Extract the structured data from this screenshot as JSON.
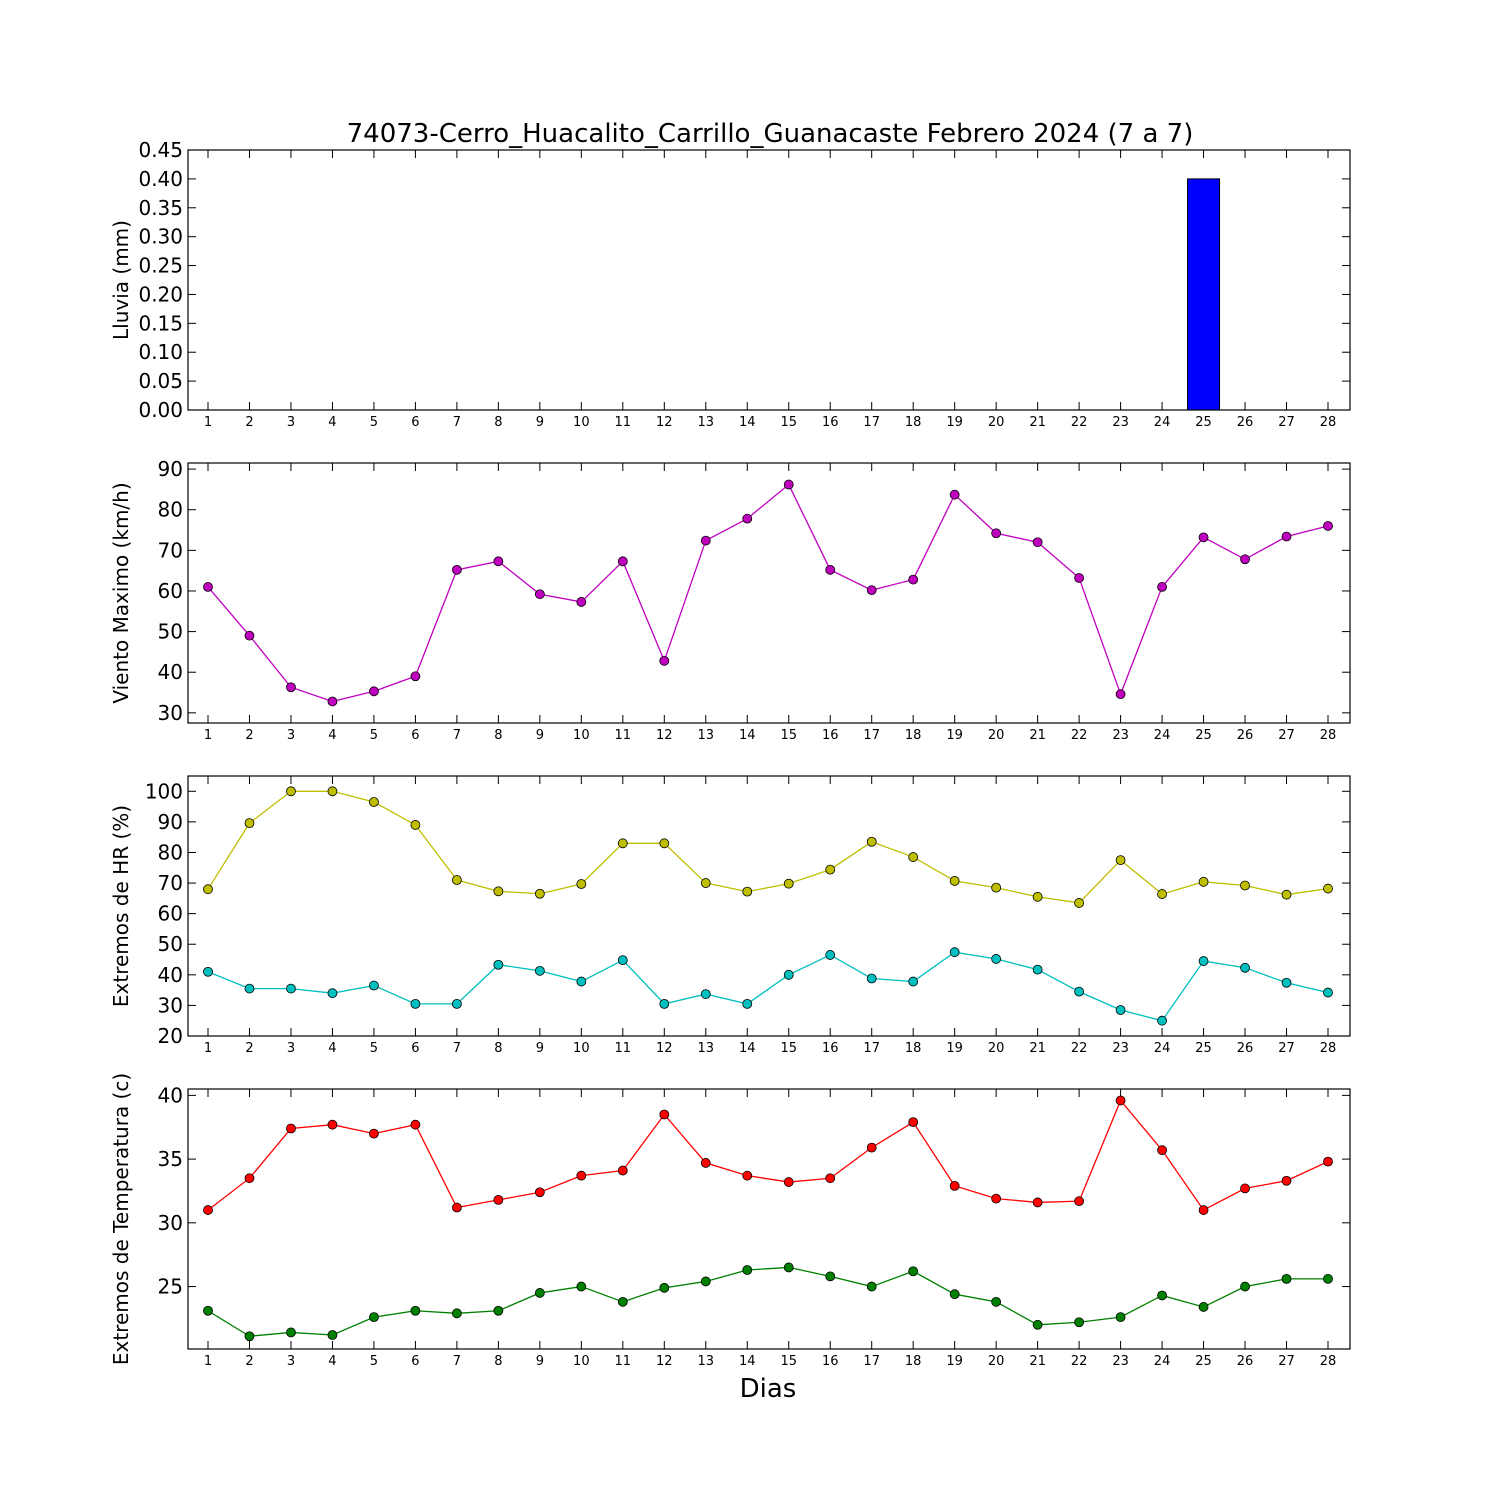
{
  "figure": {
    "title": "74073-Cerro_Huacalito_Carrillo_Guanacaste Febrero 2024  (7 a 7)",
    "xlabel": "Dias",
    "days": [
      1,
      2,
      3,
      4,
      5,
      6,
      7,
      8,
      9,
      10,
      11,
      12,
      13,
      14,
      15,
      16,
      17,
      18,
      19,
      20,
      21,
      22,
      23,
      24,
      25,
      26,
      27,
      28
    ]
  },
  "colors": {
    "rain": "#0000ff",
    "wind": "#bf00bf",
    "hr_max": "#bfbf00",
    "hr_min": "#00bfbf",
    "temp_max": "#ff0000",
    "temp_min": "#008000"
  },
  "chart_data": [
    {
      "type": "bar",
      "ylabel": "Lluvia (mm)",
      "ylim": [
        0,
        0.45
      ],
      "yticks": [
        "0.00",
        "0.05",
        "0.10",
        "0.15",
        "0.20",
        "0.25",
        "0.30",
        "0.35",
        "0.40",
        "0.45"
      ],
      "categories": [
        1,
        2,
        3,
        4,
        5,
        6,
        7,
        8,
        9,
        10,
        11,
        12,
        13,
        14,
        15,
        16,
        17,
        18,
        19,
        20,
        21,
        22,
        23,
        24,
        25,
        26,
        27,
        28
      ],
      "series": [
        {
          "color": "#0000ff",
          "values": [
            0,
            0,
            0,
            0,
            0,
            0,
            0,
            0,
            0,
            0,
            0,
            0,
            0,
            0,
            0,
            0,
            0,
            0,
            0,
            0,
            0,
            0,
            0,
            0,
            0.4,
            0,
            0,
            0
          ]
        }
      ]
    },
    {
      "type": "line",
      "ylabel": "Viento Maximo (km/h)",
      "ylim": [
        27.5,
        91.5
      ],
      "yticks": [
        "30",
        "40",
        "50",
        "60",
        "70",
        "80",
        "90"
      ],
      "x": [
        1,
        2,
        3,
        4,
        5,
        6,
        7,
        8,
        9,
        10,
        11,
        12,
        13,
        14,
        15,
        16,
        17,
        18,
        19,
        20,
        21,
        22,
        23,
        24,
        25,
        26,
        27,
        28
      ],
      "series": [
        {
          "color": "#bf00bf",
          "values": [
            61,
            49,
            36.3,
            32.8,
            35.3,
            39,
            65.2,
            67.3,
            59.2,
            57.3,
            67.3,
            42.8,
            72.4,
            77.8,
            86.2,
            65.2,
            60.2,
            62.8,
            83.7,
            74.2,
            72,
            63.2,
            34.6,
            61,
            73.2,
            67.8,
            73.4,
            76
          ]
        }
      ]
    },
    {
      "type": "line",
      "ylabel": "Extremos de HR (%)",
      "ylim": [
        20,
        105
      ],
      "yticks": [
        "20",
        "30",
        "40",
        "50",
        "60",
        "70",
        "80",
        "90",
        "100"
      ],
      "x": [
        1,
        2,
        3,
        4,
        5,
        6,
        7,
        8,
        9,
        10,
        11,
        12,
        13,
        14,
        15,
        16,
        17,
        18,
        19,
        20,
        21,
        22,
        23,
        24,
        25,
        26,
        27,
        28
      ],
      "series": [
        {
          "color": "#bfbf00",
          "values": [
            68,
            89.6,
            100,
            100,
            96.5,
            89,
            71,
            67.3,
            66.5,
            69.7,
            83,
            83,
            70,
            67.2,
            69.8,
            74.4,
            83.5,
            78.5,
            70.7,
            68.5,
            65.5,
            63.5,
            77.5,
            66.4,
            70.4,
            69.2,
            66.2,
            68.2
          ]
        },
        {
          "color": "#00bfbf",
          "values": [
            41,
            35.5,
            35.5,
            34,
            36.5,
            30.5,
            30.5,
            43.3,
            41.3,
            37.8,
            44.8,
            30.5,
            33.7,
            30.5,
            40,
            46.5,
            38.8,
            37.8,
            47.4,
            45.2,
            41.7,
            34.5,
            28.5,
            25,
            44.5,
            42.3,
            37.4,
            34.2
          ]
        }
      ]
    },
    {
      "type": "line",
      "ylabel": "Extremos de Temperatura (c)",
      "ylim": [
        20.1,
        40.5
      ],
      "yticks": [
        "25",
        "30",
        "35",
        "40"
      ],
      "x": [
        1,
        2,
        3,
        4,
        5,
        6,
        7,
        8,
        9,
        10,
        11,
        12,
        13,
        14,
        15,
        16,
        17,
        18,
        19,
        20,
        21,
        22,
        23,
        24,
        25,
        26,
        27,
        28
      ],
      "series": [
        {
          "color": "#ff0000",
          "values": [
            31,
            33.5,
            37.4,
            37.7,
            37,
            37.7,
            31.2,
            31.8,
            32.4,
            33.7,
            34.1,
            38.5,
            34.7,
            33.7,
            33.2,
            33.5,
            35.9,
            37.9,
            32.9,
            31.9,
            31.6,
            31.7,
            39.6,
            35.7,
            31,
            32.7,
            33.3,
            34.8
          ]
        },
        {
          "color": "#008000",
          "values": [
            23.1,
            21.1,
            21.4,
            21.2,
            22.6,
            23.1,
            22.9,
            23.1,
            24.5,
            25,
            23.8,
            24.9,
            25.4,
            26.3,
            26.5,
            25.8,
            25,
            26.2,
            24.4,
            23.8,
            22,
            22.2,
            22.6,
            24.3,
            23.4,
            25,
            25.6,
            25.6
          ]
        }
      ]
    }
  ]
}
